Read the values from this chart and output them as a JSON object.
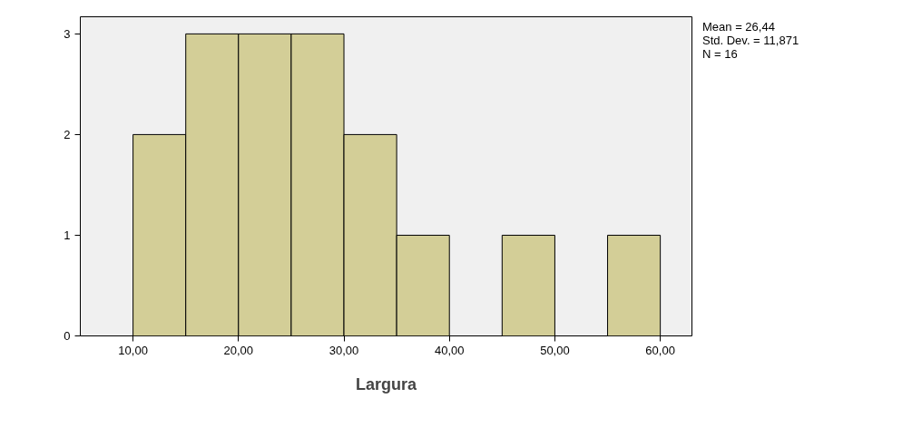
{
  "chart_data": {
    "type": "histogram",
    "xlabel": "Largura",
    "bins": [
      10,
      15,
      20,
      25,
      30,
      35,
      40,
      45,
      50,
      55,
      60
    ],
    "values": [
      2,
      3,
      3,
      3,
      2,
      1,
      0,
      1,
      0,
      1
    ],
    "color": "#d3ce97",
    "xlim": [
      5,
      63
    ],
    "ylim": [
      0,
      3.17
    ],
    "xticks": [
      {
        "value": 10,
        "label": "10,00"
      },
      {
        "value": 20,
        "label": "20,00"
      },
      {
        "value": 30,
        "label": "30,00"
      },
      {
        "value": 40,
        "label": "40,00"
      },
      {
        "value": 50,
        "label": "50,00"
      },
      {
        "value": 60,
        "label": "60,00"
      }
    ],
    "yticks": [
      0,
      1,
      2,
      3
    ],
    "grid": false,
    "annotations": [
      "Mean = 26,44",
      "Std. Dev. = 11,871",
      "N = 16"
    ]
  }
}
